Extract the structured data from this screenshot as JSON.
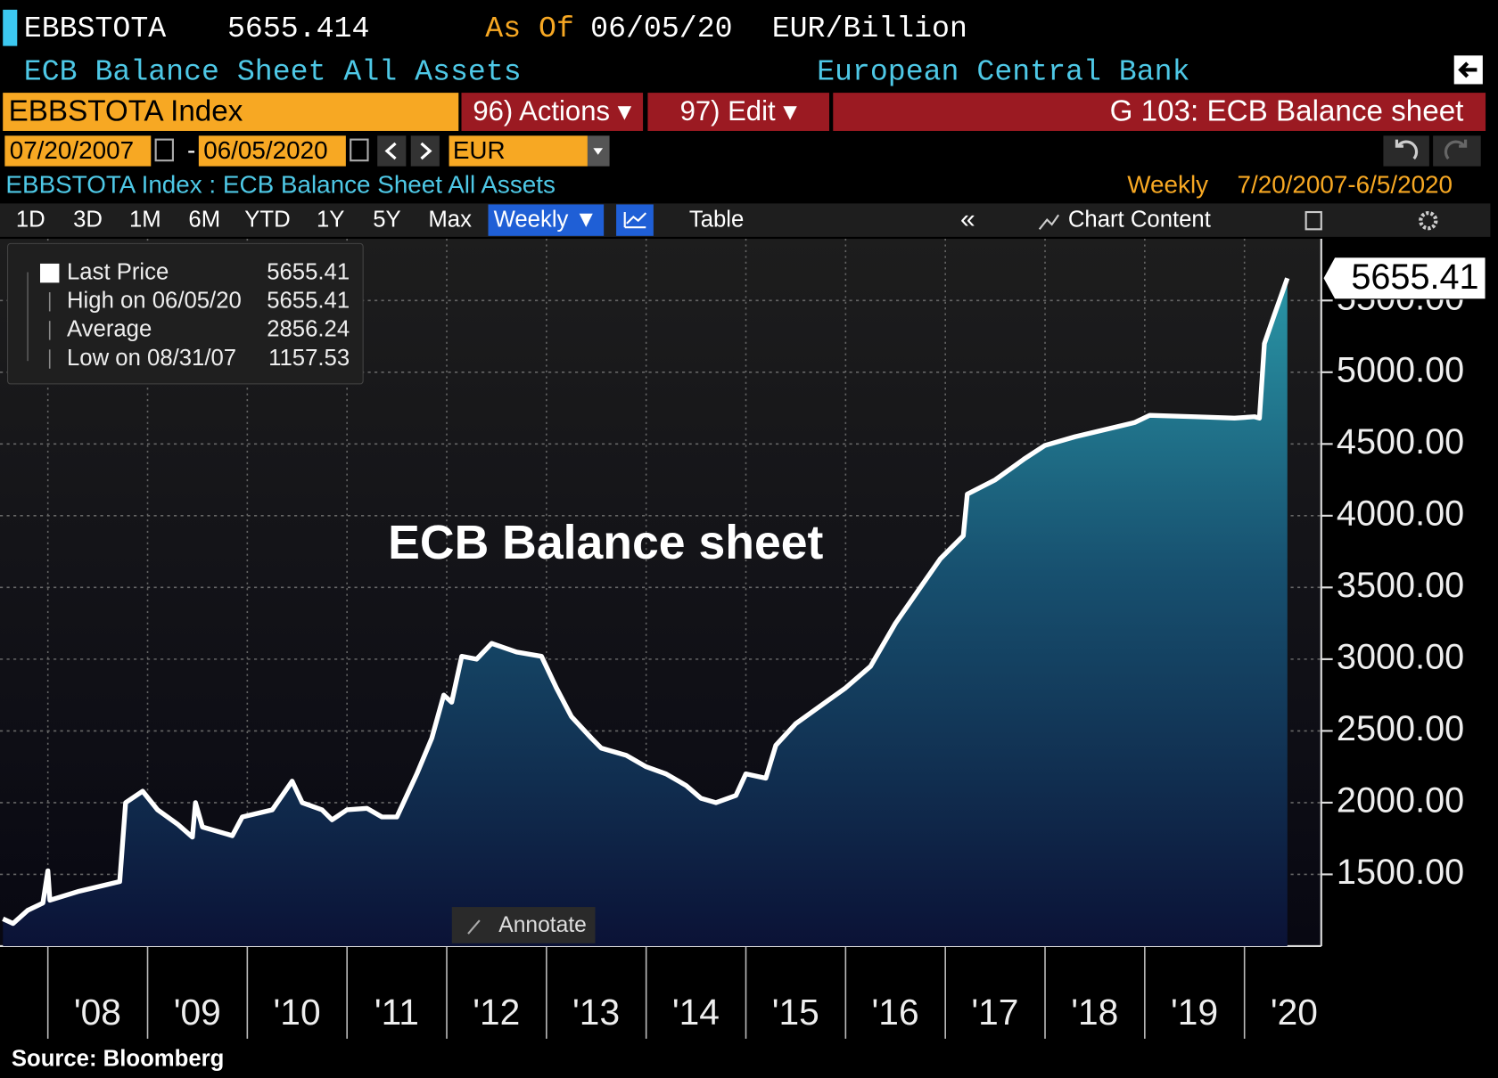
{
  "header": {
    "ticker": "EBBSTOTA",
    "price": "5655.414",
    "as_of_label": "As Of",
    "as_of": "06/05/20",
    "units": "EUR/Billion",
    "name": "ECB Balance Sheet All Assets",
    "source_name": "European Central Bank"
  },
  "toolbar": {
    "security": "EBBSTOTA Index",
    "actions": "96) Actions ▾",
    "edit": "97) Edit ▾",
    "page_title": "G 103: ECB Balance sheet"
  },
  "dates": {
    "start": "07/20/2007",
    "end": "06/05/2020",
    "currency": "EUR"
  },
  "subtitle": {
    "left": "EBBSTOTA Index : ECB Balance Sheet All Assets",
    "frequency": "Weekly",
    "range": "7/20/2007-6/5/2020"
  },
  "tabs": [
    "1D",
    "3D",
    "1M",
    "6M",
    "YTD",
    "1Y",
    "5Y",
    "Max"
  ],
  "tab_tools": {
    "weekly": "Weekly ▼",
    "table": "Table",
    "collapse": "«",
    "chart_content": "Chart Content"
  },
  "chart_data": {
    "type": "area",
    "title": "ECB Balance sheet",
    "legend": [
      {
        "label": "Last Price",
        "value": 5655.41
      },
      {
        "label": "High on 06/05/20",
        "value": 5655.41
      },
      {
        "label": "Average",
        "value": 2856.24
      },
      {
        "label": "Low on 08/31/07",
        "value": 1157.53
      }
    ],
    "x": [
      2007.55,
      2007.65,
      2007.8,
      2007.95,
      2008.0,
      2008.02,
      2008.3,
      2008.6,
      2008.72,
      2008.78,
      2008.95,
      2009.1,
      2009.3,
      2009.45,
      2009.48,
      2009.55,
      2009.85,
      2009.95,
      2010.25,
      2010.45,
      2010.55,
      2010.75,
      2010.85,
      2011.0,
      2011.2,
      2011.35,
      2011.5,
      2011.7,
      2011.85,
      2011.97,
      2012.05,
      2012.15,
      2012.3,
      2012.45,
      2012.7,
      2012.95,
      2013.1,
      2013.25,
      2013.45,
      2013.55,
      2013.8,
      2014.0,
      2014.2,
      2014.4,
      2014.55,
      2014.7,
      2014.9,
      2015.0,
      2015.2,
      2015.3,
      2015.5,
      2015.8,
      2016.0,
      2016.25,
      2016.5,
      2016.75,
      2016.95,
      2017.18,
      2017.22,
      2017.5,
      2017.8,
      2018.0,
      2018.3,
      2018.6,
      2018.9,
      2019.05,
      2019.5,
      2019.9,
      2020.1,
      2020.15,
      2020.2,
      2020.3,
      2020.43
    ],
    "series": [
      {
        "name": "Last Price",
        "color": "#ffffff",
        "values": [
          1190,
          1158,
          1250,
          1300,
          1525,
          1320,
          1380,
          1430,
          1450,
          2000,
          2080,
          1950,
          1850,
          1760,
          2000,
          1830,
          1770,
          1900,
          1950,
          2150,
          2000,
          1950,
          1880,
          1950,
          1960,
          1900,
          1900,
          2200,
          2450,
          2750,
          2700,
          3020,
          3000,
          3110,
          3050,
          3020,
          2800,
          2600,
          2450,
          2380,
          2330,
          2250,
          2200,
          2120,
          2030,
          2000,
          2050,
          2200,
          2170,
          2400,
          2550,
          2700,
          2800,
          2950,
          3250,
          3500,
          3700,
          3860,
          4150,
          4250,
          4400,
          4490,
          4550,
          4600,
          4650,
          4700,
          4690,
          4680,
          4690,
          4680,
          5200,
          5400,
          5655.41
        ]
      }
    ],
    "last_value": 5655.41,
    "xlim": [
      2007.52,
      2020.77
    ],
    "xticks": [
      {
        "value": 2008,
        "label": "'08"
      },
      {
        "value": 2009,
        "label": "'09"
      },
      {
        "value": 2010,
        "label": "'10"
      },
      {
        "value": 2011,
        "label": "'11"
      },
      {
        "value": 2012,
        "label": "'12"
      },
      {
        "value": 2013,
        "label": "'13"
      },
      {
        "value": 2014,
        "label": "'14"
      },
      {
        "value": 2015,
        "label": "'15"
      },
      {
        "value": 2016,
        "label": "'16"
      },
      {
        "value": 2017,
        "label": "'17"
      },
      {
        "value": 2018,
        "label": "'18"
      },
      {
        "value": 2019,
        "label": "'19"
      },
      {
        "value": 2020,
        "label": "'20"
      }
    ],
    "ylim": [
      1000,
      5930
    ],
    "yticks": [
      {
        "value": 1500,
        "label": "1500.00"
      },
      {
        "value": 2000,
        "label": "2000.00"
      },
      {
        "value": 2500,
        "label": "2500.00"
      },
      {
        "value": 3000,
        "label": "3000.00"
      },
      {
        "value": 3500,
        "label": "3500.00"
      },
      {
        "value": 4000,
        "label": "4000.00"
      },
      {
        "value": 4500,
        "label": "4500.00"
      },
      {
        "value": 5000,
        "label": "5000.00"
      },
      {
        "value": 5500,
        "label": "5500.00"
      }
    ],
    "grid": true,
    "annotate": "Annotate",
    "source": "Source: Bloomberg"
  }
}
